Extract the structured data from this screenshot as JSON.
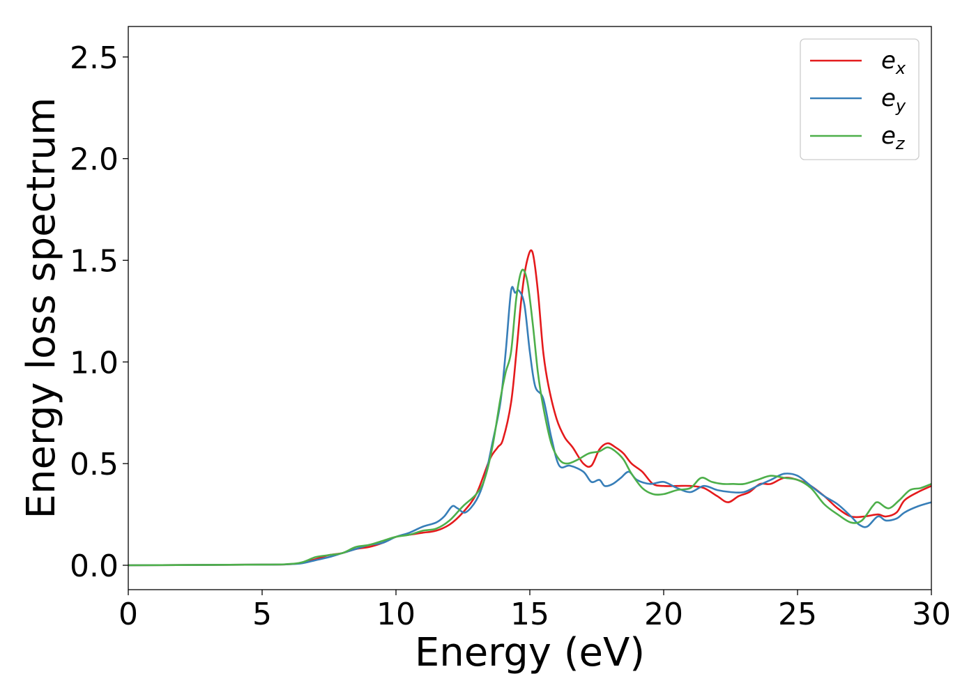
{
  "chart_data": {
    "type": "line",
    "title": "",
    "xlabel": "Energy (eV)",
    "ylabel": "Energy loss spectrum",
    "xlim": [
      0,
      30
    ],
    "ylim": [
      -0.12,
      2.65
    ],
    "xticks": [
      0,
      5,
      10,
      15,
      20,
      25,
      30
    ],
    "xtick_labels": [
      "0",
      "5",
      "10",
      "15",
      "20",
      "25",
      "30"
    ],
    "yticks": [
      0.0,
      0.5,
      1.0,
      1.5,
      2.0,
      2.5
    ],
    "ytick_labels": [
      "0.0",
      "0.5",
      "1.0",
      "1.5",
      "2.0",
      "2.5"
    ],
    "grid": false,
    "legend_position": "top-right",
    "series": [
      {
        "name": "e_x",
        "label_base": "e",
        "label_sub": "x",
        "color": "#e41a1c",
        "x": [
          0,
          5,
          6,
          6.5,
          7,
          7.5,
          8,
          8.5,
          9,
          9.5,
          10,
          10.5,
          11,
          11.5,
          12,
          12.5,
          13,
          13.5,
          13.8,
          14,
          14.3,
          14.5,
          14.7,
          14.9,
          15.1,
          15.3,
          15.5,
          15.7,
          16,
          16.3,
          16.6,
          17,
          17.3,
          17.6,
          17.9,
          18.2,
          18.5,
          18.8,
          19.2,
          19.6,
          20,
          20.5,
          21,
          21.5,
          22,
          22.4,
          22.8,
          23.2,
          23.6,
          24,
          24.5,
          25,
          25.5,
          26,
          26.5,
          27,
          27.5,
          28,
          28.3,
          28.7,
          29,
          29.5,
          30
        ],
        "y": [
          0.0,
          0.003,
          0.005,
          0.012,
          0.03,
          0.05,
          0.06,
          0.08,
          0.09,
          0.11,
          0.14,
          0.15,
          0.16,
          0.17,
          0.2,
          0.26,
          0.35,
          0.52,
          0.58,
          0.62,
          0.8,
          1.05,
          1.33,
          1.5,
          1.54,
          1.35,
          1.05,
          0.88,
          0.72,
          0.63,
          0.58,
          0.5,
          0.49,
          0.57,
          0.6,
          0.58,
          0.55,
          0.5,
          0.46,
          0.4,
          0.39,
          0.39,
          0.39,
          0.38,
          0.34,
          0.31,
          0.34,
          0.36,
          0.4,
          0.4,
          0.43,
          0.42,
          0.39,
          0.34,
          0.28,
          0.24,
          0.24,
          0.25,
          0.24,
          0.26,
          0.32,
          0.36,
          0.39
        ]
      },
      {
        "name": "e_y",
        "label_base": "e",
        "label_sub": "y",
        "color": "#377eb8",
        "x": [
          0,
          5,
          6,
          6.5,
          7,
          7.5,
          8,
          8.5,
          9,
          9.5,
          10,
          10.5,
          11,
          11.5,
          11.8,
          12.1,
          12.3,
          12.6,
          13,
          13.3,
          13.6,
          13.9,
          14.1,
          14.3,
          14.45,
          14.6,
          14.8,
          15,
          15.2,
          15.5,
          15.8,
          16.1,
          16.5,
          17,
          17.3,
          17.6,
          17.8,
          18.1,
          18.4,
          18.7,
          19,
          19.5,
          20,
          20.5,
          21,
          21.5,
          22,
          22.5,
          23,
          23.5,
          24,
          24.5,
          25,
          25.5,
          26,
          26.5,
          27,
          27.3,
          27.6,
          28,
          28.3,
          28.7,
          29,
          29.5,
          30
        ],
        "y": [
          0.0,
          0.003,
          0.005,
          0.01,
          0.025,
          0.04,
          0.06,
          0.08,
          0.1,
          0.11,
          0.14,
          0.16,
          0.19,
          0.21,
          0.24,
          0.29,
          0.28,
          0.26,
          0.32,
          0.42,
          0.6,
          0.8,
          1.05,
          1.35,
          1.34,
          1.35,
          1.28,
          1.05,
          0.88,
          0.82,
          0.63,
          0.49,
          0.49,
          0.46,
          0.41,
          0.42,
          0.39,
          0.4,
          0.43,
          0.46,
          0.42,
          0.4,
          0.41,
          0.38,
          0.36,
          0.39,
          0.37,
          0.36,
          0.36,
          0.39,
          0.42,
          0.45,
          0.44,
          0.39,
          0.34,
          0.3,
          0.24,
          0.2,
          0.19,
          0.24,
          0.22,
          0.23,
          0.26,
          0.29,
          0.31
        ]
      },
      {
        "name": "e_z",
        "label_base": "e",
        "label_sub": "z",
        "color": "#4daf4a",
        "x": [
          0,
          5,
          6,
          6.5,
          7,
          7.5,
          8,
          8.5,
          9,
          9.5,
          10,
          10.5,
          11,
          11.5,
          12,
          12.5,
          13,
          13.3,
          13.6,
          13.9,
          14.1,
          14.3,
          14.5,
          14.7,
          14.9,
          15.1,
          15.3,
          15.5,
          15.8,
          16.1,
          16.4,
          16.8,
          17.2,
          17.6,
          17.9,
          18.2,
          18.5,
          18.8,
          19.2,
          19.6,
          20,
          20.5,
          21,
          21.4,
          21.8,
          22.2,
          22.6,
          23,
          23.5,
          24,
          24.5,
          25,
          25.5,
          26,
          26.5,
          27,
          27.4,
          27.8,
          28,
          28.4,
          28.8,
          29.2,
          29.6,
          30
        ],
        "y": [
          0.0,
          0.003,
          0.006,
          0.015,
          0.04,
          0.05,
          0.06,
          0.09,
          0.1,
          0.12,
          0.14,
          0.15,
          0.17,
          0.18,
          0.22,
          0.29,
          0.35,
          0.42,
          0.58,
          0.82,
          0.95,
          1.05,
          1.32,
          1.45,
          1.4,
          1.2,
          0.95,
          0.78,
          0.6,
          0.52,
          0.5,
          0.52,
          0.55,
          0.56,
          0.58,
          0.56,
          0.52,
          0.45,
          0.38,
          0.35,
          0.35,
          0.37,
          0.38,
          0.43,
          0.41,
          0.4,
          0.4,
          0.4,
          0.42,
          0.44,
          0.43,
          0.42,
          0.38,
          0.3,
          0.25,
          0.21,
          0.22,
          0.29,
          0.31,
          0.28,
          0.32,
          0.37,
          0.38,
          0.4
        ]
      }
    ]
  }
}
